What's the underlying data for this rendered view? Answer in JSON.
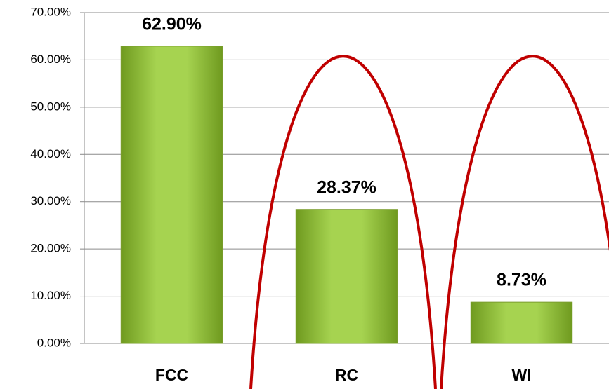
{
  "chart_data": {
    "type": "bar",
    "categories": [
      "FCC",
      "RC",
      "WI"
    ],
    "values": [
      62.9,
      28.37,
      8.73
    ],
    "value_labels": [
      "62.90%",
      "28.37%",
      "8.73%"
    ],
    "color": "#9bc83c",
    "ylim": [
      0,
      70
    ],
    "yticks": [
      {
        "value": 0,
        "label": "0.00%"
      },
      {
        "value": 10,
        "label": "10.00%"
      },
      {
        "value": 20,
        "label": "20.00%"
      },
      {
        "value": 30,
        "label": "30.00%"
      },
      {
        "value": 40,
        "label": "40.00%"
      },
      {
        "value": 50,
        "label": "50.00%"
      },
      {
        "value": 60,
        "label": "60.00%"
      },
      {
        "value": 70,
        "label": "70.00%"
      }
    ],
    "grid": true
  }
}
